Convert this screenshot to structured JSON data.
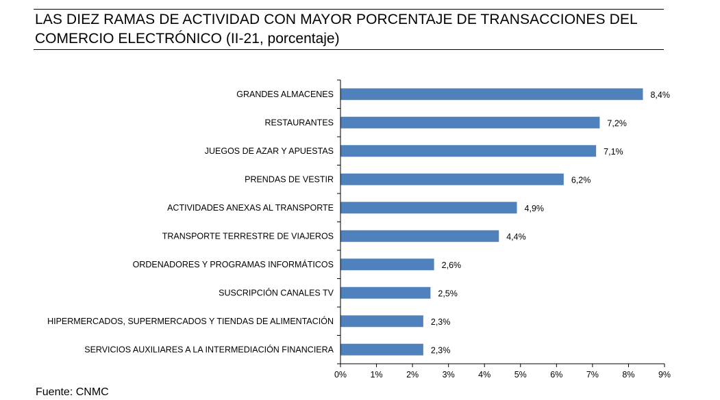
{
  "header": {
    "title_line1": "LAS DIEZ RAMAS DE ACTIVIDAD CON MAYOR PORCENTAJE DE TRANSACCIONES DEL",
    "title_line2": "COMERCIO ELECTRÓNICO (II-21, porcentaje)"
  },
  "footer": {
    "source": "Fuente: CNMC"
  },
  "colors": {
    "bar": "#4F81BD",
    "axis": "#000000",
    "text": "#000000"
  },
  "chart_data": {
    "type": "bar",
    "orientation": "horizontal",
    "title": "LAS DIEZ RAMAS DE ACTIVIDAD CON MAYOR PORCENTAJE DE TRANSACCIONES DEL COMERCIO ELECTRÓNICO (II-21, porcentaje)",
    "xlabel": "",
    "ylabel": "",
    "xlim": [
      0,
      9
    ],
    "x_ticks": [
      0,
      1,
      2,
      3,
      4,
      5,
      6,
      7,
      8,
      9
    ],
    "x_tick_labels": [
      "0%",
      "1%",
      "2%",
      "3%",
      "4%",
      "5%",
      "6%",
      "7%",
      "8%",
      "9%"
    ],
    "grid": false,
    "categories": [
      "GRANDES ALMACENES",
      "RESTAURANTES",
      "JUEGOS DE AZAR Y APUESTAS",
      "PRENDAS DE VESTIR",
      "ACTIVIDADES ANEXAS AL TRANSPORTE",
      "TRANSPORTE TERRESTRE DE VIAJEROS",
      "ORDENADORES Y PROGRAMAS INFORMÁTICOS",
      "SUSCRIPCIÓN CANALES TV",
      "HIPERMERCADOS, SUPERMERCADOS Y TIENDAS DE ALIMENTACIÓN",
      "SERVICIOS AUXILIARES A LA INTERMEDIACIÓN FINANCIERA"
    ],
    "values": [
      8.4,
      7.2,
      7.1,
      6.2,
      4.9,
      4.4,
      2.6,
      2.5,
      2.3,
      2.3
    ],
    "data_labels": [
      "8,4%",
      "7,2%",
      "7,1%",
      "6,2%",
      "4,9%",
      "4,4%",
      "2,6%",
      "2,5%",
      "2,3%",
      "2,3%"
    ]
  }
}
